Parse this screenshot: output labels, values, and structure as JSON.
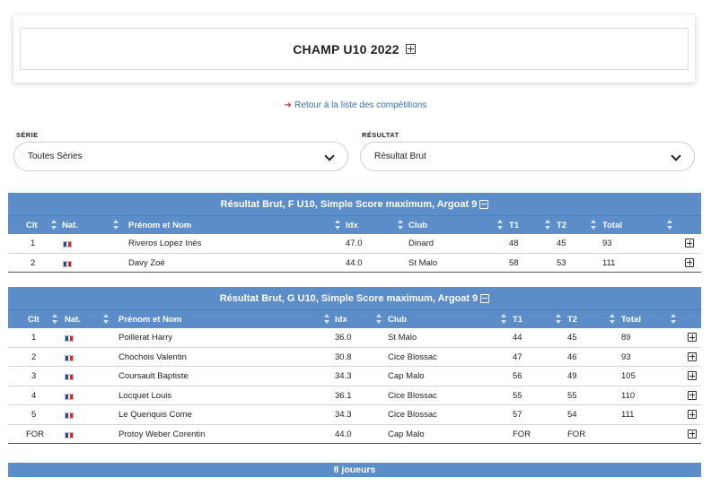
{
  "competition": {
    "title": "CHAMP U10 2022"
  },
  "back_link": {
    "text": "Retour à la liste des compétitions"
  },
  "filters": {
    "serie": {
      "label": "SÉRIE",
      "value": "Toutes Séries"
    },
    "resultat": {
      "label": "RÉSULTAT",
      "value": "Résultat Brut"
    }
  },
  "columns": {
    "clt": "Clt",
    "nat": "Nat.",
    "name": "Prénom et Nom",
    "idx": "Idx",
    "club": "Club",
    "t1": "T1",
    "t2": "T2",
    "total": "Total"
  },
  "tables": [
    {
      "title": "Résultat Brut, F U10, Simple Score maximum, Argoat 9",
      "rows": [
        {
          "clt": "1",
          "name": "Riveros Lopez Inès",
          "idx": "47.0",
          "club": "Dinard",
          "t1": "48",
          "t2": "45",
          "total": "93"
        },
        {
          "clt": "2",
          "name": "Davy Zoé",
          "idx": "44.0",
          "club": "St Malo",
          "t1": "58",
          "t2": "53",
          "total": "111"
        }
      ]
    },
    {
      "title": "Résultat Brut, G U10, Simple Score maximum, Argoat 9",
      "rows": [
        {
          "clt": "1",
          "name": "Poillerat Harry",
          "idx": "36.0",
          "club": "St Malo",
          "t1": "44",
          "t2": "45",
          "total": "89"
        },
        {
          "clt": "2",
          "name": "Chochois Valentin",
          "idx": "30.8",
          "club": "Cice Blossac",
          "t1": "47",
          "t2": "46",
          "total": "93"
        },
        {
          "clt": "3",
          "name": "Coursault Baptiste",
          "idx": "34.3",
          "club": "Cap Malo",
          "t1": "56",
          "t2": "49",
          "total": "105"
        },
        {
          "clt": "4",
          "name": "Locquet Louis",
          "idx": "36.1",
          "club": "Cice Blossac",
          "t1": "55",
          "t2": "55",
          "total": "110"
        },
        {
          "clt": "5",
          "name": "Le Quenquis Come",
          "idx": "34.3",
          "club": "Cice Blossac",
          "t1": "57",
          "t2": "54",
          "total": "111"
        },
        {
          "clt": "FOR",
          "name": "Protoy Weber Corentin",
          "idx": "44.0",
          "club": "Cap Malo",
          "t1": "FOR",
          "t2": "FOR",
          "total": ""
        }
      ]
    }
  ],
  "summary": {
    "text": "8 joueurs"
  },
  "colors": {
    "header_blue": "#5b8ec8",
    "link_blue": "#3a6fb0",
    "arrow_red": "#dd3333"
  }
}
